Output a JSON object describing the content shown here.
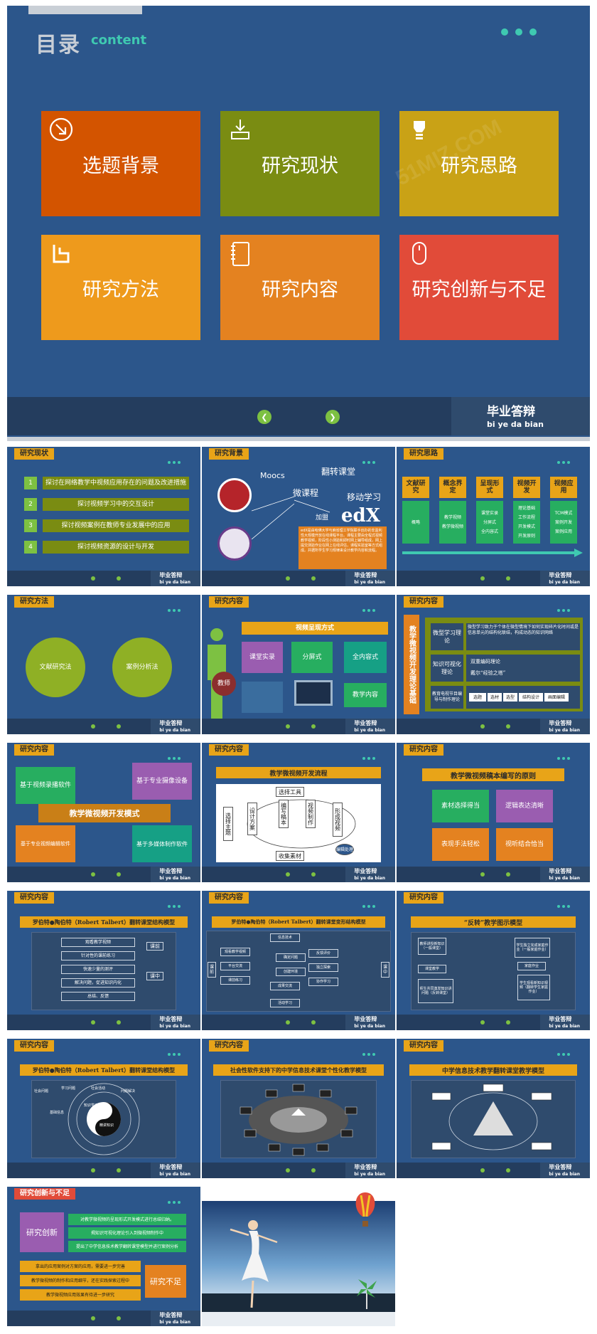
{
  "main": {
    "title_cn": "目录",
    "title_en": "content",
    "tiles": [
      {
        "label": "选题背景",
        "color": "#d35400",
        "icon": "arrow-circle-icon"
      },
      {
        "label": "研究现状",
        "color": "#7a8c12",
        "icon": "download-tray-icon"
      },
      {
        "label": "研究思路",
        "color": "#c9a216",
        "icon": "lightbulb-icon"
      },
      {
        "label": "研究方法",
        "color": "#ee9a1c",
        "icon": "share-icon"
      },
      {
        "label": "研究内容",
        "color": "#e48220",
        "icon": "notebook-icon"
      },
      {
        "label": "研究创新与不足",
        "color": "#e14b39",
        "icon": "mouse-icon"
      }
    ],
    "footer_cn": "毕业答辩",
    "footer_py": "bi ye da bian"
  },
  "watermark": "51MIZ.COM",
  "thumbs": {
    "foot_cn": "毕业答辩",
    "foot_py": "bi ye da bian",
    "t1": {
      "tag": "研究现状",
      "items": [
        {
          "n": "1",
          "text": "探讨在网络教学中视频应用存在的问题及改进措施"
        },
        {
          "n": "2",
          "text": "探讨视频学习中的交互设计"
        },
        {
          "n": "3",
          "text": "探讨视频案例在教师专业发展中的应用"
        },
        {
          "n": "4",
          "text": "探讨视频资源的设计与开发"
        }
      ]
    },
    "t2": {
      "tag": "研究背景",
      "words": [
        "Moocs",
        "翻转课堂",
        "微课程",
        "移动学习",
        "加盟"
      ],
      "logo": "edX",
      "desc": "edX是由哈佛大学与麻省理工学院联手创办的非盈利性大规模开放在线课程平台。课程主要由全程式视频教学视频，阶段性小测验和即时网上辅导组成，网上提交测验作业在网上在线评估，课程实验室等方式组成。并据所学生学习规律来设计教学内容和流程。"
    },
    "t3": {
      "tag": "研究思路",
      "cols": [
        {
          "h": "文献研究",
          "items": [
            "概略"
          ]
        },
        {
          "h": "概念界定",
          "items": [
            "教学视频",
            "教学微视频"
          ]
        },
        {
          "h": "呈现形式",
          "items": [
            "课堂实录",
            "分屏式",
            "全内容式"
          ]
        },
        {
          "h": "视频开发",
          "items": [
            "理论基础",
            "工作流程",
            "开发模式",
            "开发原则"
          ]
        },
        {
          "h": "视频应用",
          "items": [
            "TCM模式",
            "案例开发",
            "案例应用"
          ]
        }
      ]
    },
    "t4": {
      "tag": "研究方法",
      "c1": "文献研究法",
      "c2": "案例分析法"
    },
    "t5": {
      "tag": "研究内容",
      "header": "视频呈现方式",
      "b1": "课堂实录",
      "b2": "分屏式",
      "b3": "全内容式",
      "b4": "教学内容",
      "teacher": "教师"
    },
    "t6": {
      "tag": "研究内容",
      "side": "教学微视频开发理论基础",
      "r1h": "微型学习理论",
      "r1t": "微型学习致力于个体在微型情境下如何实现碎片化时间或是信息单元的结构化联结，构成动态的知识网络",
      "r2h": "知识可视化理论",
      "r2a": "双重编码理论",
      "r2b": "戴尔“经验之塔”",
      "r3h": "教育电视节目编导与制作理论",
      "r3items": [
        "选题",
        "选材",
        "选型",
        "结构设计",
        "画面编辑"
      ]
    },
    "t7": {
      "tag": "研究内容",
      "center": "教学微视频开发模式",
      "a": "基于视频录播软件",
      "b": "基于专业摄像设备",
      "c": "基于专业视频编辑软件",
      "d": "基于多媒体制作软件"
    },
    "t8": {
      "tag": "研究内容",
      "title": "教学微视频开发流程",
      "nodes": [
        "选择主题",
        "设计方案",
        "编写稿本",
        "视频制作",
        "形成视频",
        "选择工具",
        "收集素材",
        "编辑处理"
      ]
    },
    "t9": {
      "tag": "研究内容",
      "title": "教学微视频稿本编写的原则",
      "p1": "素材选择得当",
      "p2": "逻辑表达清晰",
      "p3": "表现手法轻松",
      "p4": "视听结合恰当"
    },
    "t10": {
      "tag": "研究内容",
      "title": "罗伯特●陶伯特（Robert Talbert）翻转课堂结构模型",
      "rows": [
        "观看教学视频",
        "针对性的课前练习",
        "快速少量的测评",
        "解决问题，促进知识内化",
        "总结、反馈"
      ],
      "l1": "课前",
      "l2": "课中"
    },
    "t11": {
      "tag": "研究内容",
      "title": "罗伯特●陶伯特（Robert Talbert）翻转课堂变形结构模型",
      "nodes": [
        "信息技术",
        "观看教学视频",
        "平台交流",
        "课前练习",
        "确定问题",
        "创建环境",
        "反馈评价",
        "独立探索",
        "协作学习",
        "成果交流",
        "活动学习"
      ],
      "l1": "课前",
      "l2": "课中"
    },
    "t12": {
      "tag": "研究内容",
      "title": "“反转”教学图示模型",
      "nodes": [
        "教师讲授新知识（一般课堂）",
        "课堂教学",
        "学生独立完成家庭作业（一般家庭作业）",
        "师生共同激发知识讲问题（反转课堂）",
        "学生观看新知识视频（翻转学生家庭作业）",
        "家庭作业"
      ]
    },
    "t13": {
      "tag": "研究内容",
      "title": "罗伯特●陶伯特（Robert Talbert）翻转课堂结构模型",
      "ring": [
        "社会问题",
        "学习问题",
        "社会活动",
        "问题解决",
        "知识学习",
        "基础信息",
        "精讲知识"
      ]
    },
    "t14": {
      "tag": "研究内容",
      "title": "社会性软件支持下的中学信息技术课堂个性化教学模型"
    },
    "t15": {
      "tag": "研究内容",
      "title": "中学信息技术教学翻转课堂教学模型"
    },
    "t16": {
      "tag": "研究创新与不足",
      "inno": "研究创新",
      "lack": "研究不足",
      "g": [
        "对教学微视频的呈现形式开发模式进行总结归纳。",
        "揭知识可视化理论引入到微视频制作中",
        "提出了中学信息技术教学翻转课堂模型并进行案例分析"
      ],
      "o": [
        "拿出的应用案例对方案的应用，需要进一步完善",
        "教学微视频的制作和应用细节，还在实践探索过程中",
        "教学微视频应用效果有待进一步研究"
      ]
    },
    "colors": {
      "bg": "#2c568b",
      "foot": "#243d5e",
      "accent": "#e8a418",
      "teal": "#3fc9b1",
      "green": "#7dc142"
    }
  }
}
